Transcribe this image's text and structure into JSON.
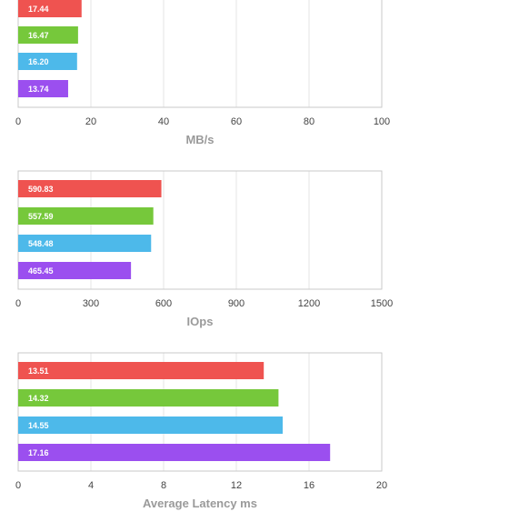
{
  "colors": [
    "#ef5350",
    "#76c83b",
    "#4db9ea",
    "#9b4fef"
  ],
  "chart_data": [
    {
      "type": "bar",
      "orientation": "horizontal",
      "xlabel": "MB/s",
      "xlim": [
        0,
        100
      ],
      "ticks": [
        "0",
        "20",
        "40",
        "60",
        "80",
        "100"
      ],
      "tick_values": [
        0,
        20,
        40,
        60,
        80,
        100
      ],
      "values": [
        17.44,
        16.47,
        16.2,
        13.74
      ],
      "labels": [
        "17.44",
        "16.47",
        "16.20",
        "13.74"
      ],
      "grid": true,
      "top_cropped": true
    },
    {
      "type": "bar",
      "orientation": "horizontal",
      "xlabel": "IOps",
      "xlim": [
        0,
        1500
      ],
      "ticks": [
        "0",
        "300",
        "600",
        "900",
        "1200",
        "1500"
      ],
      "tick_values": [
        0,
        300,
        600,
        900,
        1200,
        1500
      ],
      "values": [
        590.83,
        557.59,
        548.48,
        465.45
      ],
      "labels": [
        "590.83",
        "557.59",
        "548.48",
        "465.45"
      ],
      "grid": true
    },
    {
      "type": "bar",
      "orientation": "horizontal",
      "xlabel": "Average Latency ms",
      "xlim": [
        0,
        20
      ],
      "ticks": [
        "0",
        "4",
        "8",
        "12",
        "16",
        "20"
      ],
      "tick_values": [
        0,
        4,
        8,
        12,
        16,
        20
      ],
      "values": [
        13.51,
        14.32,
        14.55,
        17.16
      ],
      "labels": [
        "13.51",
        "14.32",
        "14.55",
        "17.16"
      ],
      "grid": true
    }
  ]
}
